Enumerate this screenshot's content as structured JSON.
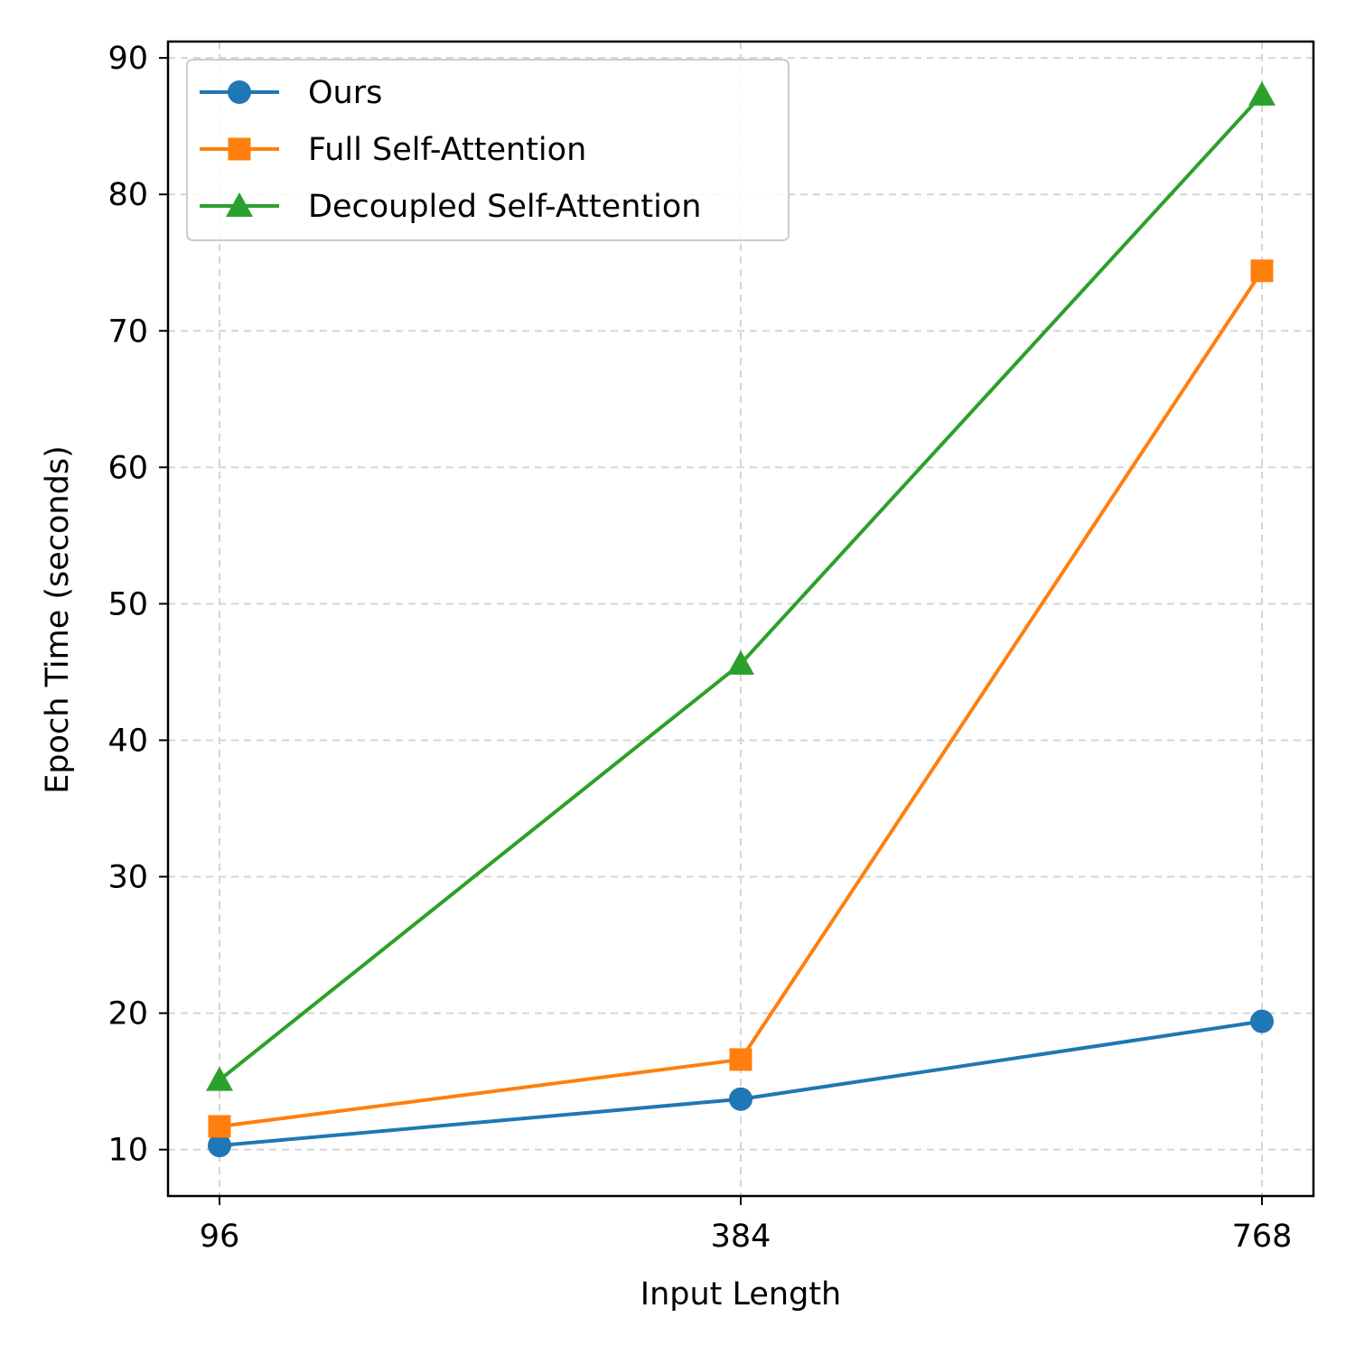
{
  "chart_data": {
    "type": "line",
    "title": "",
    "xlabel": "Input Length",
    "ylabel": "Epoch Time (seconds)",
    "x": [
      96,
      384,
      768
    ],
    "x_tick_labels": [
      "96",
      "384",
      "768"
    ],
    "ylim": [
      6.6,
      91.2
    ],
    "y_ticks": [
      10,
      20,
      30,
      40,
      50,
      60,
      70,
      80,
      90
    ],
    "y_tick_labels": [
      "10",
      "20",
      "30",
      "40",
      "50",
      "60",
      "70",
      "80",
      "90"
    ],
    "grid": true,
    "legend_position": "top-left",
    "series": [
      {
        "name": "Ours",
        "values": [
          10.3,
          13.7,
          19.4
        ],
        "color": "#1f77b4",
        "marker": "circle"
      },
      {
        "name": "Full Self-Attention",
        "values": [
          11.7,
          16.6,
          74.4
        ],
        "color": "#ff7f0e",
        "marker": "square"
      },
      {
        "name": "Decoupled Self-Attention",
        "values": [
          15.1,
          45.6,
          87.3
        ],
        "color": "#2ca02c",
        "marker": "triangle"
      }
    ]
  }
}
